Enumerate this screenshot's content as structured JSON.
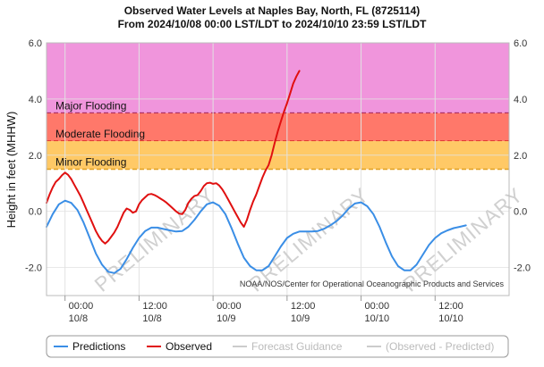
{
  "chart_data": {
    "type": "line",
    "title": "Observed Water Levels at Naples Bay, North, FL (8725114)",
    "subtitle": "From 2024/10/08 00:00 LST/LDT to 2024/10/10 23:59 LST/LDT",
    "ylabel": "Height in feet (MHHW)",
    "ylim": [
      -3.0,
      6.0
    ],
    "xlim_hours": [
      -3,
      72
    ],
    "y_ticks": [
      "6.0",
      "4.0",
      "2.0",
      "0.0",
      "-2.0"
    ],
    "y_ticks_right": [
      "6.0",
      "4.0",
      "2.0",
      "0.0",
      "-2.0"
    ],
    "x_ticks": [
      {
        "hour": 0,
        "line1": "00:00",
        "line2": "10/8"
      },
      {
        "hour": 12,
        "line1": "12:00",
        "line2": "10/8"
      },
      {
        "hour": 24,
        "line1": "00:00",
        "line2": "10/9"
      },
      {
        "hour": 36,
        "line1": "12:00",
        "line2": "10/9"
      },
      {
        "hour": 48,
        "line1": "00:00",
        "line2": "10/10"
      },
      {
        "hour": 60,
        "line1": "12:00",
        "line2": "10/10"
      }
    ],
    "flood_bands": [
      {
        "name": "Major Flooding",
        "from": 3.5,
        "to": 6.0,
        "color": "#f095dc",
        "line_color": "#7a0050"
      },
      {
        "name": "Moderate Flooding",
        "from": 2.5,
        "to": 3.5,
        "color": "#ff786a",
        "line_color": "#d01818"
      },
      {
        "name": "Minor Flooding",
        "from": 1.5,
        "to": 2.5,
        "color": "#ffc966",
        "line_color": "#e0a020"
      }
    ],
    "series": [
      {
        "name": "Predictions",
        "color": "#3a8ee6",
        "points": [
          [
            -3,
            -0.55
          ],
          [
            -2,
            -0.1
          ],
          [
            -1,
            0.25
          ],
          [
            0,
            0.38
          ],
          [
            1,
            0.3
          ],
          [
            2,
            0.05
          ],
          [
            3,
            -0.4
          ],
          [
            4,
            -0.95
          ],
          [
            5,
            -1.5
          ],
          [
            6,
            -1.9
          ],
          [
            7,
            -2.15
          ],
          [
            8,
            -2.2
          ],
          [
            9,
            -2.05
          ],
          [
            10,
            -1.7
          ],
          [
            11,
            -1.3
          ],
          [
            12,
            -0.95
          ],
          [
            13,
            -0.7
          ],
          [
            14,
            -0.58
          ],
          [
            15,
            -0.58
          ],
          [
            16,
            -0.63
          ],
          [
            17,
            -0.68
          ],
          [
            18,
            -0.72
          ],
          [
            19,
            -0.7
          ],
          [
            20,
            -0.55
          ],
          [
            21,
            -0.3
          ],
          [
            22,
            0.0
          ],
          [
            23,
            0.25
          ],
          [
            24,
            0.32
          ],
          [
            25,
            0.2
          ],
          [
            26,
            -0.1
          ],
          [
            27,
            -0.6
          ],
          [
            28,
            -1.15
          ],
          [
            29,
            -1.65
          ],
          [
            30,
            -1.95
          ],
          [
            31,
            -2.1
          ],
          [
            32,
            -2.1
          ],
          [
            33,
            -1.95
          ],
          [
            34,
            -1.6
          ],
          [
            35,
            -1.25
          ],
          [
            36,
            -0.95
          ],
          [
            37,
            -0.8
          ],
          [
            38,
            -0.72
          ],
          [
            39,
            -0.72
          ],
          [
            40,
            -0.72
          ],
          [
            41,
            -0.7
          ],
          [
            42,
            -0.62
          ],
          [
            43,
            -0.5
          ],
          [
            44,
            -0.35
          ],
          [
            45,
            -0.15
          ],
          [
            46,
            0.1
          ],
          [
            47,
            0.28
          ],
          [
            48,
            0.32
          ],
          [
            49,
            0.18
          ],
          [
            50,
            -0.1
          ],
          [
            51,
            -0.55
          ],
          [
            52,
            -1.1
          ],
          [
            53,
            -1.6
          ],
          [
            54,
            -1.95
          ],
          [
            55,
            -2.1
          ],
          [
            56,
            -2.1
          ],
          [
            57,
            -1.9
          ],
          [
            58,
            -1.55
          ],
          [
            59,
            -1.2
          ],
          [
            60,
            -0.95
          ],
          [
            61,
            -0.78
          ],
          [
            62,
            -0.68
          ],
          [
            63,
            -0.6
          ],
          [
            64,
            -0.55
          ],
          [
            65,
            -0.5
          ]
        ]
      },
      {
        "name": "Observed",
        "color": "#e01010",
        "points": [
          [
            -3,
            0.3
          ],
          [
            -2.5,
            0.6
          ],
          [
            -2,
            0.85
          ],
          [
            -1.5,
            1.05
          ],
          [
            -1,
            1.15
          ],
          [
            -0.5,
            1.28
          ],
          [
            0,
            1.38
          ],
          [
            0.5,
            1.3
          ],
          [
            1,
            1.15
          ],
          [
            1.5,
            0.95
          ],
          [
            2,
            0.75
          ],
          [
            2.5,
            0.55
          ],
          [
            3,
            0.3
          ],
          [
            3.5,
            0.05
          ],
          [
            4,
            -0.2
          ],
          [
            4.5,
            -0.45
          ],
          [
            5,
            -0.7
          ],
          [
            5.5,
            -0.9
          ],
          [
            6,
            -1.05
          ],
          [
            6.5,
            -1.15
          ],
          [
            7,
            -1.05
          ],
          [
            7.5,
            -0.9
          ],
          [
            8,
            -0.75
          ],
          [
            8.5,
            -0.55
          ],
          [
            9,
            -0.3
          ],
          [
            9.5,
            -0.05
          ],
          [
            10,
            0.1
          ],
          [
            10.5,
            0.05
          ],
          [
            11,
            -0.05
          ],
          [
            11.5,
            0.0
          ],
          [
            12,
            0.25
          ],
          [
            12.5,
            0.4
          ],
          [
            13,
            0.5
          ],
          [
            13.5,
            0.6
          ],
          [
            14,
            0.62
          ],
          [
            14.5,
            0.58
          ],
          [
            15,
            0.52
          ],
          [
            15.5,
            0.45
          ],
          [
            16,
            0.38
          ],
          [
            16.5,
            0.3
          ],
          [
            17,
            0.2
          ],
          [
            17.5,
            0.1
          ],
          [
            18,
            0.0
          ],
          [
            18.5,
            -0.08
          ],
          [
            19,
            -0.1
          ],
          [
            19.5,
            0.05
          ],
          [
            20,
            0.3
          ],
          [
            20.5,
            0.45
          ],
          [
            21,
            0.55
          ],
          [
            21.5,
            0.58
          ],
          [
            22,
            0.72
          ],
          [
            22.5,
            0.9
          ],
          [
            23,
            1.0
          ],
          [
            23.5,
            1.02
          ],
          [
            24,
            0.98
          ],
          [
            24.5,
            1.0
          ],
          [
            25,
            0.92
          ],
          [
            25.5,
            0.78
          ],
          [
            26,
            0.6
          ],
          [
            26.5,
            0.4
          ],
          [
            27,
            0.2
          ],
          [
            27.5,
            0.0
          ],
          [
            28,
            -0.2
          ],
          [
            28.5,
            -0.4
          ],
          [
            29,
            -0.55
          ],
          [
            29.5,
            -0.3
          ],
          [
            30,
            0.05
          ],
          [
            30.5,
            0.35
          ],
          [
            31,
            0.6
          ],
          [
            31.5,
            0.9
          ],
          [
            32,
            1.2
          ],
          [
            32.5,
            1.45
          ],
          [
            33,
            1.65
          ],
          [
            33.5,
            2.0
          ],
          [
            34,
            2.45
          ],
          [
            34.5,
            2.85
          ],
          [
            35,
            3.2
          ],
          [
            35.5,
            3.55
          ],
          [
            36,
            3.85
          ],
          [
            36.5,
            4.2
          ],
          [
            37,
            4.55
          ],
          [
            37.5,
            4.8
          ],
          [
            38,
            5.0
          ]
        ]
      }
    ],
    "annotations": [
      "NOAA/NOS/Center for Operational Oceanographic Products and Services",
      "PRELIMINARY"
    ],
    "legend": {
      "position": "bottom",
      "items": [
        {
          "label": "Predictions",
          "color": "#3a8ee6",
          "enabled": true
        },
        {
          "label": "Observed",
          "color": "#e01010",
          "enabled": true
        },
        {
          "label": "Forecast Guidance",
          "color": "#cccccc",
          "enabled": false
        },
        {
          "label": "(Observed - Predicted)",
          "color": "#cccccc",
          "enabled": false
        }
      ]
    }
  }
}
